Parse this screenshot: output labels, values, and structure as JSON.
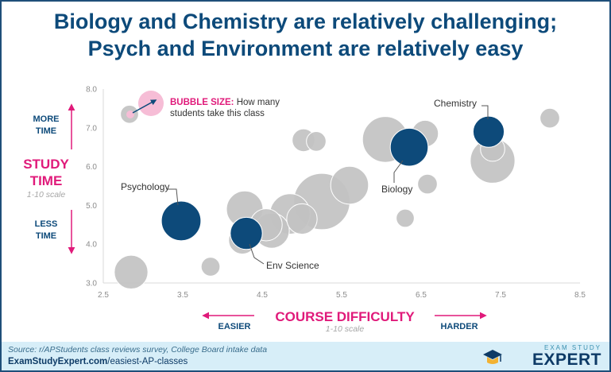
{
  "title_line1": "Biology and Chemistry are relatively challenging;",
  "title_line2": "Psych and Environment are relatively easy",
  "colors": {
    "highlight": "#0d4a7a",
    "grey": "#c2c2c2",
    "accent": "#e01a7a",
    "legend_fill": "#f6bdd6"
  },
  "chart_data": {
    "type": "scatter",
    "subtype": "bubble",
    "xlabel": "COURSE DIFFICULTY",
    "xlabel_sub": "1-10 scale",
    "ylabel_line1": "STUDY",
    "ylabel_line2": "TIME",
    "ylabel_sub": "1-10 scale",
    "xlim": [
      2.5,
      8.5
    ],
    "ylim": [
      3.0,
      8.0
    ],
    "xticks": [
      "2.5",
      "3.5",
      "4.5",
      "5.5",
      "6.5",
      "7.5",
      "8.5"
    ],
    "xtick_values": [
      2.5,
      3.5,
      4.5,
      5.5,
      6.5,
      7.5,
      8.5
    ],
    "yticks": [
      "3.0",
      "4.0",
      "5.0",
      "6.0",
      "7.0",
      "8.0"
    ],
    "ytick_values": [
      3.0,
      4.0,
      5.0,
      6.0,
      7.0,
      8.0
    ],
    "x_dir_low": "EASIER",
    "x_dir_high": "HARDER",
    "y_dir_high_line1": "MORE",
    "y_dir_high_line2": "TIME",
    "y_dir_low_line1": "LESS",
    "y_dir_low_line2": "TIME",
    "legend_bold": "BUBBLE SIZE:",
    "legend_text_line1": " How many",
    "legend_text_line2": "students take this class",
    "points": [
      {
        "x": 2.85,
        "y": 3.28,
        "size": 0.4
      },
      {
        "x": 2.83,
        "y": 7.35,
        "size": 0.05
      },
      {
        "x": 3.85,
        "y": 3.42,
        "size": 0.06
      },
      {
        "x": 4.25,
        "y": 4.1,
        "size": 0.22
      },
      {
        "x": 4.28,
        "y": 4.9,
        "size": 0.5
      },
      {
        "x": 4.55,
        "y": 4.5,
        "size": 0.35
      },
      {
        "x": 4.62,
        "y": 4.35,
        "size": 0.45
      },
      {
        "x": 4.85,
        "y": 4.78,
        "size": 0.65
      },
      {
        "x": 5.0,
        "y": 4.65,
        "size": 0.3
      },
      {
        "x": 5.02,
        "y": 6.68,
        "size": 0.12
      },
      {
        "x": 5.18,
        "y": 6.65,
        "size": 0.07
      },
      {
        "x": 5.25,
        "y": 5.1,
        "size": 1.5
      },
      {
        "x": 5.6,
        "y": 5.52,
        "size": 0.55
      },
      {
        "x": 6.05,
        "y": 6.7,
        "size": 0.9
      },
      {
        "x": 6.3,
        "y": 4.67,
        "size": 0.05
      },
      {
        "x": 6.55,
        "y": 6.85,
        "size": 0.2
      },
      {
        "x": 6.58,
        "y": 5.55,
        "size": 0.07
      },
      {
        "x": 7.4,
        "y": 6.15,
        "size": 0.85
      },
      {
        "x": 7.4,
        "y": 6.45,
        "size": 0.15
      },
      {
        "x": 8.12,
        "y": 7.25,
        "size": 0.07
      }
    ],
    "highlights": [
      {
        "name": "Chemistry",
        "x": 7.35,
        "y": 6.9,
        "size": 0.32
      },
      {
        "name": "Biology",
        "x": 6.35,
        "y": 6.5,
        "size": 0.55
      },
      {
        "name": "Psychology",
        "x": 3.48,
        "y": 4.6,
        "size": 0.62
      },
      {
        "name": "Env Science",
        "x": 4.3,
        "y": 4.28,
        "size": 0.35
      }
    ]
  },
  "footer": {
    "source": "Source: r/APStudents class reviews survey, College Board intake data",
    "url_bold": "ExamStudyExpert.com",
    "url_rest": "/easiest-AP-classes"
  },
  "logo": {
    "small": "EXAM STUDY",
    "big": "EXPERT"
  }
}
